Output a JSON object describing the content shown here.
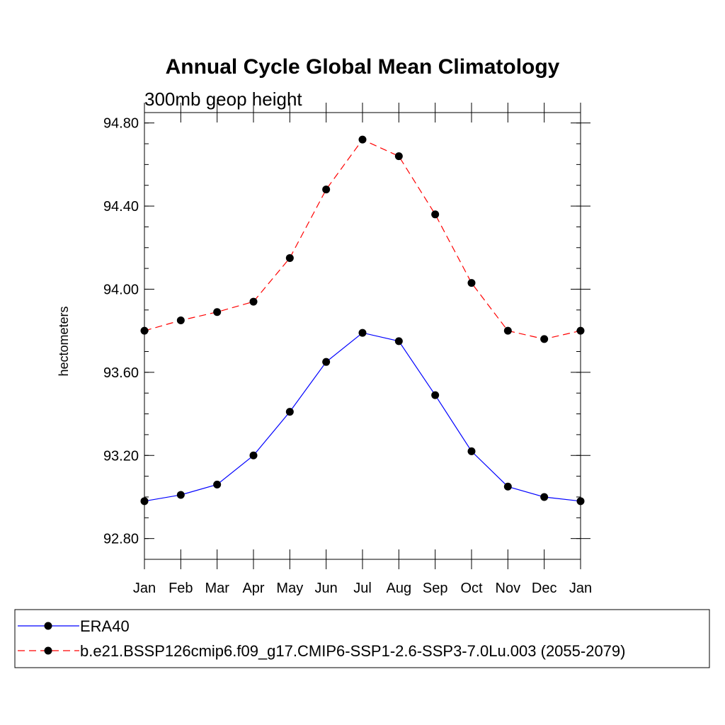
{
  "chart_data": {
    "type": "line",
    "title": "Annual Cycle Global Mean Climatology",
    "subtitle": "300mb geop height",
    "xlabel": "",
    "ylabel": "hectometers",
    "categories": [
      "Jan",
      "Feb",
      "Mar",
      "Apr",
      "May",
      "Jun",
      "Jul",
      "Aug",
      "Sep",
      "Oct",
      "Nov",
      "Dec",
      "Jan"
    ],
    "ylim": [
      92.7,
      94.85
    ],
    "yticks": [
      "92.80",
      "93.20",
      "93.60",
      "94.00",
      "94.40",
      "94.80"
    ],
    "grid": false,
    "legend_position": "bottom",
    "series": [
      {
        "name": "ERA40",
        "color": "#0000ff",
        "line_style": "solid",
        "marker": "filled-circle",
        "values": [
          92.98,
          93.01,
          93.06,
          93.2,
          93.41,
          93.65,
          93.79,
          93.75,
          93.49,
          93.22,
          93.05,
          93.0,
          92.98
        ]
      },
      {
        "name": "b.e21.BSSP126cmip6.f09_g17.CMIP6-SSP1-2.6-SSP3-7.0Lu.003 (2055-2079)",
        "color": "#ff0000",
        "line_style": "dashed",
        "marker": "filled-circle",
        "values": [
          93.8,
          93.85,
          93.89,
          93.94,
          94.15,
          94.48,
          94.72,
          94.64,
          94.36,
          94.03,
          93.8,
          93.76,
          93.8
        ]
      }
    ]
  }
}
